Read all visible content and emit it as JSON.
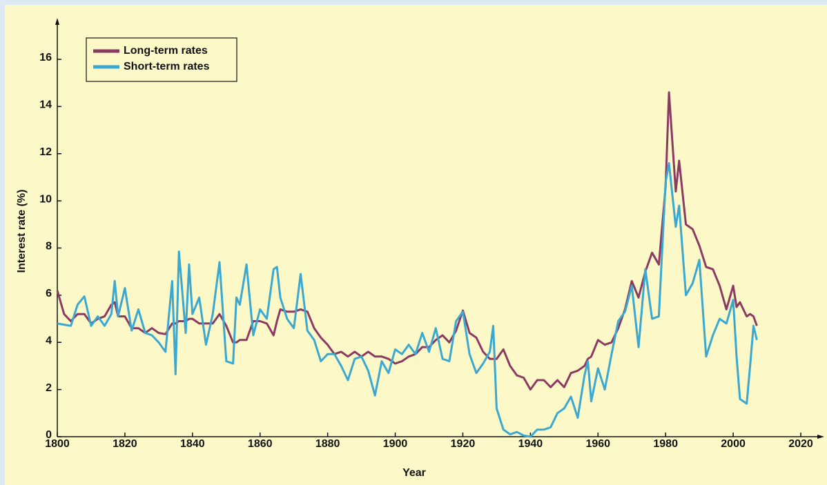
{
  "chart_data": {
    "type": "line",
    "x_label": "Year",
    "y_label": "Interest rate (%)",
    "x": [
      1800,
      1802,
      1804,
      1806,
      1808,
      1810,
      1812,
      1814,
      1816,
      1817,
      1818,
      1820,
      1822,
      1824,
      1826,
      1828,
      1830,
      1832,
      1834,
      1835,
      1836,
      1838,
      1839,
      1840,
      1842,
      1844,
      1846,
      1848,
      1850,
      1852,
      1853,
      1854,
      1856,
      1858,
      1860,
      1862,
      1864,
      1865,
      1866,
      1868,
      1870,
      1872,
      1874,
      1876,
      1878,
      1880,
      1882,
      1884,
      1886,
      1888,
      1890,
      1892,
      1894,
      1896,
      1898,
      1900,
      1902,
      1904,
      1906,
      1908,
      1910,
      1912,
      1914,
      1916,
      1918,
      1920,
      1922,
      1924,
      1926,
      1928,
      1929,
      1930,
      1932,
      1934,
      1936,
      1938,
      1940,
      1942,
      1944,
      1946,
      1948,
      1950,
      1952,
      1954,
      1956,
      1957,
      1958,
      1960,
      1962,
      1964,
      1966,
      1968,
      1970,
      1972,
      1974,
      1976,
      1978,
      1980,
      1981,
      1983,
      1984,
      1986,
      1988,
      1990,
      1992,
      1994,
      1996,
      1998,
      2000,
      2001,
      2002,
      2004,
      2005,
      2006,
      2007
    ],
    "series": [
      {
        "name": "Long-term rates",
        "color": "#8b3a62",
        "values": [
          6.2,
          5.2,
          4.9,
          5.2,
          5.2,
          4.8,
          5.0,
          5.1,
          5.6,
          5.7,
          5.1,
          5.1,
          4.6,
          4.6,
          4.4,
          4.6,
          4.4,
          4.35,
          4.8,
          4.8,
          4.9,
          4.9,
          5.0,
          5.0,
          4.8,
          4.8,
          4.8,
          5.2,
          4.7,
          4.0,
          4.0,
          4.1,
          4.1,
          4.9,
          4.9,
          4.8,
          4.3,
          4.9,
          5.4,
          5.3,
          5.3,
          5.4,
          5.3,
          4.6,
          4.2,
          3.9,
          3.5,
          3.6,
          3.4,
          3.6,
          3.4,
          3.6,
          3.4,
          3.4,
          3.3,
          3.1,
          3.2,
          3.4,
          3.5,
          3.8,
          3.8,
          4.1,
          4.3,
          4.0,
          4.5,
          5.35,
          4.4,
          4.2,
          3.6,
          3.3,
          3.3,
          3.3,
          3.7,
          3.0,
          2.6,
          2.5,
          2.0,
          2.4,
          2.4,
          2.1,
          2.4,
          2.1,
          2.7,
          2.8,
          3.0,
          3.3,
          3.4,
          4.1,
          3.9,
          4.0,
          4.6,
          5.4,
          6.6,
          5.9,
          7.0,
          7.8,
          7.3,
          10.6,
          14.6,
          10.4,
          11.7,
          9.0,
          8.8,
          8.1,
          7.2,
          7.1,
          6.4,
          5.4,
          6.4,
          5.5,
          5.7,
          5.1,
          5.2,
          5.1,
          4.7
        ]
      },
      {
        "name": "Short-term rates",
        "color": "#3aa8d0",
        "values": [
          4.8,
          4.75,
          4.7,
          5.6,
          5.95,
          4.7,
          5.1,
          4.7,
          5.2,
          6.6,
          5.1,
          6.3,
          4.5,
          5.4,
          4.4,
          4.3,
          4.0,
          3.6,
          6.6,
          2.65,
          7.85,
          4.4,
          7.3,
          5.2,
          5.9,
          3.9,
          5.2,
          7.4,
          3.2,
          3.1,
          5.9,
          5.6,
          7.3,
          4.3,
          5.4,
          5.0,
          7.1,
          7.2,
          5.9,
          5.0,
          4.6,
          6.9,
          4.5,
          4.1,
          3.2,
          3.5,
          3.5,
          3.0,
          2.4,
          3.3,
          3.4,
          2.8,
          1.75,
          3.2,
          2.7,
          3.7,
          3.5,
          3.9,
          3.5,
          4.4,
          3.6,
          4.6,
          3.3,
          3.2,
          4.9,
          5.3,
          3.5,
          2.7,
          3.1,
          3.6,
          4.7,
          1.2,
          0.3,
          0.1,
          0.2,
          0.05,
          0.0,
          0.3,
          0.3,
          0.4,
          1.0,
          1.2,
          1.7,
          0.8,
          2.6,
          3.2,
          1.5,
          2.9,
          2.0,
          3.5,
          4.9,
          5.3,
          6.4,
          3.8,
          7.1,
          5.0,
          5.1,
          10.8,
          11.6,
          8.9,
          9.8,
          6.0,
          6.5,
          7.5,
          3.4,
          4.3,
          5.0,
          4.8,
          5.8,
          3.4,
          1.6,
          1.4,
          3.0,
          4.7,
          4.1
        ]
      }
    ],
    "xlim": [
      1800,
      2026
    ],
    "ylim": [
      0,
      17.6
    ],
    "xticks": [
      1800,
      1820,
      1840,
      1860,
      1880,
      1900,
      1920,
      1940,
      1960,
      1980,
      2000,
      2020
    ],
    "yticks": [
      0,
      2,
      4,
      6,
      8,
      10,
      12,
      14,
      16
    ],
    "grid": false,
    "legend": "upper left"
  }
}
